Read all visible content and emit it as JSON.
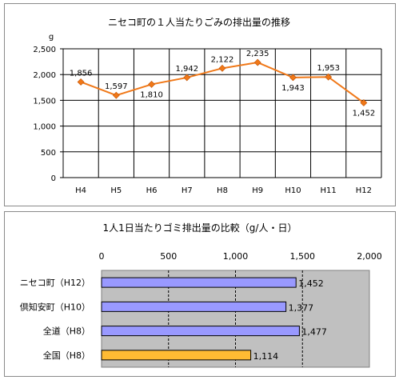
{
  "chart_data": [
    {
      "type": "line",
      "title": "ニセコ町の１人当たりごみの排出量の推移",
      "ylabel": "g",
      "categories": [
        "H4",
        "H5",
        "H6",
        "H7",
        "H8",
        "H9",
        "H10",
        "H11",
        "H12"
      ],
      "series": [
        {
          "values": [
            1856,
            1597,
            1810,
            1942,
            2122,
            2235,
            1943,
            1953,
            1452
          ]
        }
      ],
      "data_labels": [
        "1,856",
        "1,597",
        "1,810",
        "1,942",
        "2,122",
        "2,235",
        "1,943",
        "1,953",
        "1,452"
      ],
      "ylim": [
        0,
        2500
      ],
      "yticks": [
        0,
        500,
        1000,
        1500,
        2000,
        2500
      ],
      "ytick_labels": [
        "0",
        "500",
        "1,000",
        "1,500",
        "2,000",
        "2,500"
      ],
      "grid": "horizontal and vertical",
      "color": "#f07818",
      "marker_color": "#f07818"
    },
    {
      "type": "bar",
      "orientation": "horizontal",
      "title": "1人1日当たりゴミ排出量の比較（g/人・日）",
      "categories": [
        "ニセコ町（H12）",
        "倶知安町（H10）",
        "全道（H8）",
        "全国（H8）"
      ],
      "values": [
        1452,
        1377,
        1477,
        1114
      ],
      "data_labels": [
        "1,452",
        "1,377",
        "1,477",
        "1,114"
      ],
      "xlim": [
        0,
        2000
      ],
      "xticks": [
        0,
        500,
        1000,
        1500,
        2000
      ],
      "xtick_labels": [
        "0",
        "500",
        "1,000",
        "1,500",
        "2,000"
      ],
      "colors": [
        "#9999ff",
        "#9999ff",
        "#9999ff",
        "#ffbb33"
      ],
      "plot_background": "#c0c0c0"
    }
  ]
}
